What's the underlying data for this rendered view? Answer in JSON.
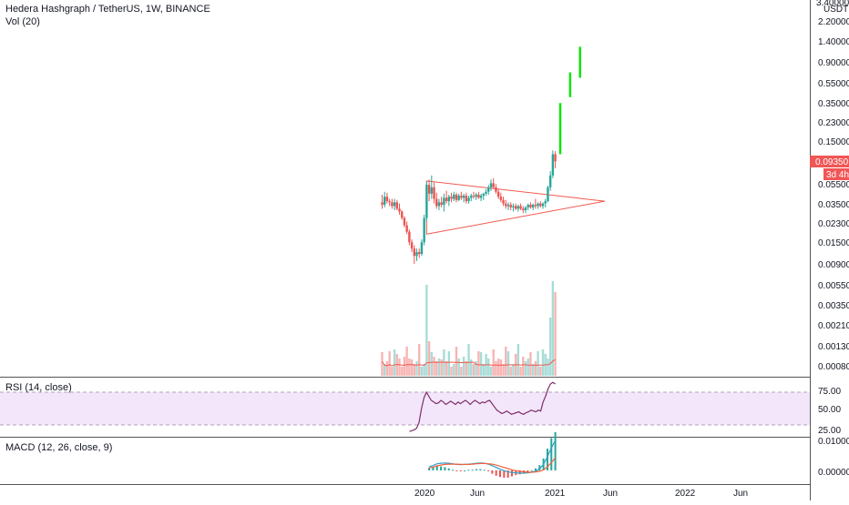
{
  "header": {
    "symbol_line": "Hedera Hashgraph / TetherUS, 1W, BINANCE",
    "volume_label": "Vol (20)"
  },
  "colors": {
    "up": "#26a69a",
    "down": "#ef5350",
    "projection": "#00e600",
    "triangle": "#f05a50",
    "rsi_line": "#7e2f68",
    "rsi_band": "#f3e6fb",
    "macd_line": "#2ea0c8",
    "signal_line": "#f0603c",
    "price_badge": "#f15656",
    "axis_text": "#131722",
    "divider": "#555555"
  },
  "price_axis": {
    "currency": "USDT",
    "top_partial": "3.40000",
    "ticks": [
      "2.20000",
      "1.40000",
      "0.90000",
      "0.55000",
      "0.35000",
      "0.23000",
      "0.15000",
      "0.05500",
      "0.03500",
      "0.02300",
      "0.01500",
      "0.00900"
    ],
    "current_price": "0.09350",
    "countdown": "3d 4h"
  },
  "volume_axis": {
    "ticks": [
      "0.00550",
      "0.00350",
      "0.00210",
      "0.00130",
      "0.00080"
    ]
  },
  "rsi": {
    "label": "RSI (14, close)",
    "ticks": [
      "75.00",
      "50.00",
      "25.00"
    ],
    "overbought": 70,
    "oversold": 30
  },
  "macd": {
    "label": "MACD (12, 26, close, 9)",
    "ticks": [
      "0.01000",
      "0.00000"
    ]
  },
  "time_axis": {
    "labels": [
      "2020",
      "Jun",
      "2021",
      "Jun",
      "2022",
      "Jun"
    ]
  },
  "chart_data": {
    "type": "candlestick",
    "scale": "log",
    "title": "Hedera Hashgraph / TetherUS, 1W, BINANCE",
    "xlabel": "",
    "ylabel": "",
    "ylim": [
      0.0075,
      3.4
    ],
    "x_range": [
      "2019-09-16",
      "2022-11-01"
    ],
    "candles": [
      {
        "date": "2019-09-16",
        "o": 0.037,
        "h": 0.044,
        "l": 0.032,
        "c": 0.035
      },
      {
        "date": "2019-09-23",
        "o": 0.035,
        "h": 0.047,
        "l": 0.033,
        "c": 0.042
      },
      {
        "date": "2019-09-30",
        "o": 0.042,
        "h": 0.046,
        "l": 0.036,
        "c": 0.038
      },
      {
        "date": "2019-10-07",
        "o": 0.038,
        "h": 0.04,
        "l": 0.034,
        "c": 0.037
      },
      {
        "date": "2019-10-14",
        "o": 0.037,
        "h": 0.04,
        "l": 0.032,
        "c": 0.034
      },
      {
        "date": "2019-10-21",
        "o": 0.034,
        "h": 0.04,
        "l": 0.031,
        "c": 0.037
      },
      {
        "date": "2019-10-28",
        "o": 0.037,
        "h": 0.039,
        "l": 0.031,
        "c": 0.032
      },
      {
        "date": "2019-11-04",
        "o": 0.032,
        "h": 0.036,
        "l": 0.028,
        "c": 0.03
      },
      {
        "date": "2019-11-11",
        "o": 0.03,
        "h": 0.031,
        "l": 0.025,
        "c": 0.026
      },
      {
        "date": "2019-11-18",
        "o": 0.026,
        "h": 0.027,
        "l": 0.021,
        "c": 0.022
      },
      {
        "date": "2019-11-25",
        "o": 0.022,
        "h": 0.024,
        "l": 0.018,
        "c": 0.019
      },
      {
        "date": "2019-12-02",
        "o": 0.019,
        "h": 0.02,
        "l": 0.014,
        "c": 0.015
      },
      {
        "date": "2019-12-09",
        "o": 0.015,
        "h": 0.016,
        "l": 0.012,
        "c": 0.013
      },
      {
        "date": "2019-12-16",
        "o": 0.013,
        "h": 0.014,
        "l": 0.0092,
        "c": 0.011
      },
      {
        "date": "2019-12-23",
        "o": 0.011,
        "h": 0.013,
        "l": 0.0098,
        "c": 0.012
      },
      {
        "date": "2019-12-30",
        "o": 0.012,
        "h": 0.013,
        "l": 0.0105,
        "c": 0.0115
      },
      {
        "date": "2020-01-06",
        "o": 0.0115,
        "h": 0.016,
        "l": 0.011,
        "c": 0.015
      },
      {
        "date": "2020-01-13",
        "o": 0.015,
        "h": 0.028,
        "l": 0.014,
        "c": 0.026
      },
      {
        "date": "2020-01-20",
        "o": 0.026,
        "h": 0.06,
        "l": 0.024,
        "c": 0.055
      },
      {
        "date": "2020-01-27",
        "o": 0.055,
        "h": 0.062,
        "l": 0.038,
        "c": 0.045
      },
      {
        "date": "2020-02-03",
        "o": 0.045,
        "h": 0.068,
        "l": 0.04,
        "c": 0.052
      },
      {
        "date": "2020-02-10",
        "o": 0.052,
        "h": 0.058,
        "l": 0.036,
        "c": 0.04
      },
      {
        "date": "2020-02-17",
        "o": 0.04,
        "h": 0.046,
        "l": 0.032,
        "c": 0.034
      },
      {
        "date": "2020-02-24",
        "o": 0.034,
        "h": 0.04,
        "l": 0.031,
        "c": 0.037
      },
      {
        "date": "2020-03-02",
        "o": 0.037,
        "h": 0.042,
        "l": 0.033,
        "c": 0.035
      },
      {
        "date": "2020-03-09",
        "o": 0.035,
        "h": 0.045,
        "l": 0.03,
        "c": 0.041
      },
      {
        "date": "2020-03-16",
        "o": 0.041,
        "h": 0.048,
        "l": 0.036,
        "c": 0.038
      },
      {
        "date": "2020-03-23",
        "o": 0.038,
        "h": 0.044,
        "l": 0.034,
        "c": 0.042
      },
      {
        "date": "2020-03-30",
        "o": 0.042,
        "h": 0.046,
        "l": 0.037,
        "c": 0.04
      },
      {
        "date": "2020-04-06",
        "o": 0.04,
        "h": 0.047,
        "l": 0.038,
        "c": 0.044
      },
      {
        "date": "2020-04-13",
        "o": 0.044,
        "h": 0.046,
        "l": 0.037,
        "c": 0.039
      },
      {
        "date": "2020-04-20",
        "o": 0.039,
        "h": 0.045,
        "l": 0.038,
        "c": 0.043
      },
      {
        "date": "2020-04-27",
        "o": 0.043,
        "h": 0.047,
        "l": 0.039,
        "c": 0.041
      },
      {
        "date": "2020-05-04",
        "o": 0.041,
        "h": 0.045,
        "l": 0.037,
        "c": 0.043
      },
      {
        "date": "2020-05-11",
        "o": 0.043,
        "h": 0.046,
        "l": 0.036,
        "c": 0.038
      },
      {
        "date": "2020-05-18",
        "o": 0.038,
        "h": 0.043,
        "l": 0.036,
        "c": 0.041
      },
      {
        "date": "2020-05-25",
        "o": 0.041,
        "h": 0.045,
        "l": 0.038,
        "c": 0.043
      },
      {
        "date": "2020-06-01",
        "o": 0.043,
        "h": 0.047,
        "l": 0.04,
        "c": 0.042
      },
      {
        "date": "2020-06-08",
        "o": 0.042,
        "h": 0.046,
        "l": 0.039,
        "c": 0.044
      },
      {
        "date": "2020-06-15",
        "o": 0.044,
        "h": 0.047,
        "l": 0.04,
        "c": 0.041
      },
      {
        "date": "2020-06-22",
        "o": 0.041,
        "h": 0.045,
        "l": 0.038,
        "c": 0.043
      },
      {
        "date": "2020-06-29",
        "o": 0.043,
        "h": 0.046,
        "l": 0.039,
        "c": 0.045
      },
      {
        "date": "2020-07-06",
        "o": 0.045,
        "h": 0.05,
        "l": 0.043,
        "c": 0.047
      },
      {
        "date": "2020-07-13",
        "o": 0.047,
        "h": 0.055,
        "l": 0.044,
        "c": 0.052
      },
      {
        "date": "2020-07-20",
        "o": 0.052,
        "h": 0.062,
        "l": 0.048,
        "c": 0.057
      },
      {
        "date": "2020-07-27",
        "o": 0.057,
        "h": 0.064,
        "l": 0.05,
        "c": 0.052
      },
      {
        "date": "2020-08-03",
        "o": 0.052,
        "h": 0.056,
        "l": 0.045,
        "c": 0.047
      },
      {
        "date": "2020-08-10",
        "o": 0.047,
        "h": 0.05,
        "l": 0.04,
        "c": 0.042
      },
      {
        "date": "2020-08-17",
        "o": 0.042,
        "h": 0.046,
        "l": 0.037,
        "c": 0.039
      },
      {
        "date": "2020-08-24",
        "o": 0.039,
        "h": 0.042,
        "l": 0.034,
        "c": 0.036
      },
      {
        "date": "2020-08-31",
        "o": 0.036,
        "h": 0.039,
        "l": 0.032,
        "c": 0.034
      },
      {
        "date": "2020-09-07",
        "o": 0.034,
        "h": 0.037,
        "l": 0.031,
        "c": 0.035
      },
      {
        "date": "2020-09-14",
        "o": 0.035,
        "h": 0.037,
        "l": 0.031,
        "c": 0.033
      },
      {
        "date": "2020-09-21",
        "o": 0.033,
        "h": 0.036,
        "l": 0.03,
        "c": 0.034
      },
      {
        "date": "2020-09-28",
        "o": 0.034,
        "h": 0.036,
        "l": 0.031,
        "c": 0.032
      },
      {
        "date": "2020-10-05",
        "o": 0.032,
        "h": 0.035,
        "l": 0.03,
        "c": 0.034
      },
      {
        "date": "2020-10-12",
        "o": 0.034,
        "h": 0.036,
        "l": 0.031,
        "c": 0.032
      },
      {
        "date": "2020-10-19",
        "o": 0.032,
        "h": 0.034,
        "l": 0.029,
        "c": 0.031
      },
      {
        "date": "2020-10-26",
        "o": 0.031,
        "h": 0.034,
        "l": 0.029,
        "c": 0.033
      },
      {
        "date": "2020-11-02",
        "o": 0.033,
        "h": 0.036,
        "l": 0.031,
        "c": 0.035
      },
      {
        "date": "2020-11-09",
        "o": 0.035,
        "h": 0.037,
        "l": 0.032,
        "c": 0.033
      },
      {
        "date": "2020-11-16",
        "o": 0.033,
        "h": 0.036,
        "l": 0.031,
        "c": 0.035
      },
      {
        "date": "2020-11-23",
        "o": 0.035,
        "h": 0.04,
        "l": 0.032,
        "c": 0.034
      },
      {
        "date": "2020-11-30",
        "o": 0.034,
        "h": 0.037,
        "l": 0.032,
        "c": 0.036
      },
      {
        "date": "2020-12-07",
        "o": 0.036,
        "h": 0.038,
        "l": 0.033,
        "c": 0.034
      },
      {
        "date": "2020-12-14",
        "o": 0.034,
        "h": 0.037,
        "l": 0.032,
        "c": 0.036
      },
      {
        "date": "2020-12-21",
        "o": 0.036,
        "h": 0.04,
        "l": 0.033,
        "c": 0.038
      },
      {
        "date": "2020-12-28",
        "o": 0.038,
        "h": 0.054,
        "l": 0.037,
        "c": 0.052
      },
      {
        "date": "2021-01-04",
        "o": 0.052,
        "h": 0.075,
        "l": 0.048,
        "c": 0.068
      },
      {
        "date": "2021-01-11",
        "o": 0.068,
        "h": 0.12,
        "l": 0.064,
        "c": 0.11
      },
      {
        "date": "2021-01-18",
        "o": 0.11,
        "h": 0.118,
        "l": 0.08,
        "c": 0.0935
      }
    ],
    "projection": [
      {
        "date": "2021-02-01",
        "low": 0.11,
        "high": 0.35
      },
      {
        "date": "2021-03-01",
        "low": 0.4,
        "high": 0.7
      },
      {
        "date": "2021-03-29",
        "low": 0.62,
        "high": 1.25
      }
    ],
    "triangle": [
      {
        "date": "2020-01-20",
        "price": 0.06
      },
      {
        "date": "2021-06-07",
        "price": 0.038
      },
      {
        "date": "2020-01-20",
        "price": 0.018
      }
    ],
    "rsi_series": [
      22,
      23,
      24,
      26,
      33,
      50,
      63,
      70,
      65,
      60,
      58,
      56,
      57,
      60,
      58,
      55,
      57,
      59,
      57,
      55,
      58,
      56,
      58,
      60,
      58,
      55,
      58,
      60,
      58,
      56,
      58,
      57,
      59,
      60,
      56,
      52,
      48,
      46,
      44,
      45,
      47,
      45,
      43,
      44,
      45,
      46,
      44,
      43,
      45,
      46,
      48,
      47,
      46,
      48,
      47,
      58,
      65,
      74,
      80,
      82,
      80
    ],
    "volume_scale_note": "Volume (20) with MA",
    "macd_line_series": [
      0.0012,
      0.0016,
      0.0022,
      0.0024,
      0.0025,
      0.0024,
      0.0022,
      0.002,
      0.0019,
      0.002,
      0.0021,
      0.0022,
      0.0024,
      0.0025,
      0.0024,
      0.0021,
      0.0016,
      0.001,
      0.0004,
      -0.0001,
      -0.0005,
      -0.0007,
      -0.0008,
      -0.0009,
      -0.0009,
      -0.0008,
      -0.0006,
      -0.0002,
      0.0005,
      0.002,
      0.0045,
      0.0075,
      0.01
    ],
    "macd_signal_series": [
      0.0008,
      0.0011,
      0.0015,
      0.0018,
      0.002,
      0.0021,
      0.0021,
      0.0021,
      0.002,
      0.002,
      0.002,
      0.0021,
      0.0022,
      0.0023,
      0.0023,
      0.0022,
      0.0021,
      0.0018,
      0.0014,
      0.001,
      0.0006,
      0.0002,
      -0.0001,
      -0.0003,
      -0.0005,
      -0.0006,
      -0.0006,
      -0.0005,
      -0.0003,
      0.0002,
      0.0012,
      0.0026,
      0.0042
    ]
  }
}
